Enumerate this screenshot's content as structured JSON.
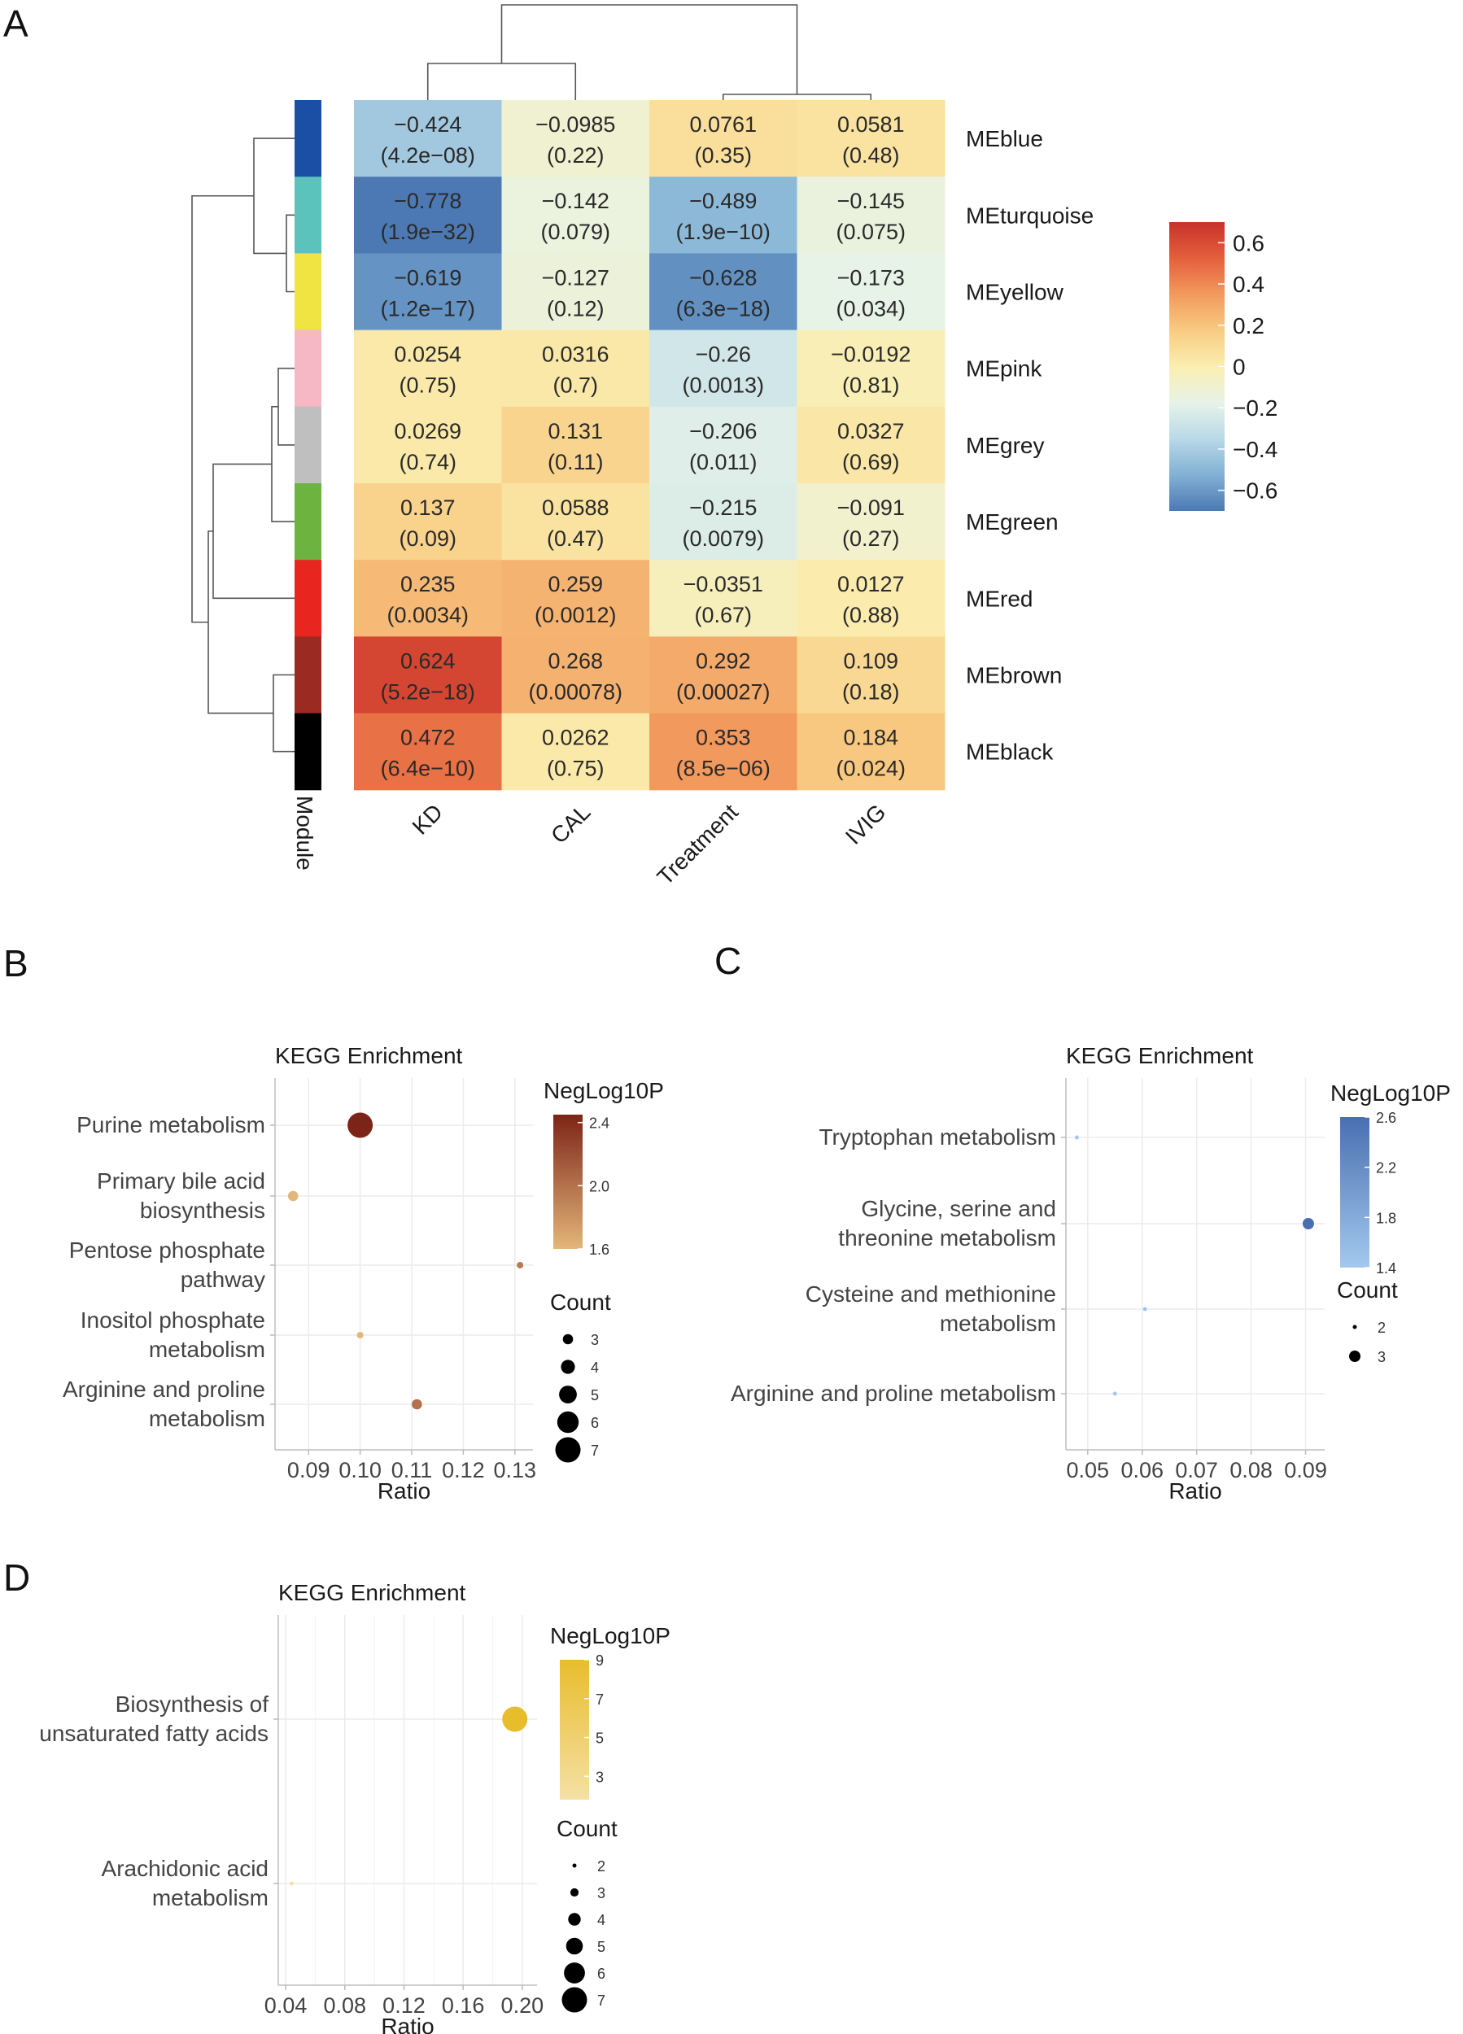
{
  "panel_labels": {
    "a": "A",
    "b": "B",
    "c": "C",
    "d": "D"
  },
  "chart_data": [
    {
      "type": "heatmap",
      "panel": "A",
      "columns": [
        "KD",
        "CAL",
        "Treatment",
        "IVIG"
      ],
      "rows": [
        "MEblue",
        "MEturquoise",
        "MEyellow",
        "MEpink",
        "MEgrey",
        "MEgreen",
        "MEred",
        "MEbrown",
        "MEblack"
      ],
      "module_colors": [
        "#1b4ea5",
        "#5cc2bc",
        "#f0e442",
        "#f7b8c6",
        "#bfbfbf",
        "#6cb33f",
        "#e8261f",
        "#9b2a23",
        "#000000"
      ],
      "values": [
        [
          -0.424,
          -0.0985,
          0.0761,
          0.0581
        ],
        [
          -0.778,
          -0.142,
          -0.489,
          -0.145
        ],
        [
          -0.619,
          -0.127,
          -0.628,
          -0.173
        ],
        [
          0.0254,
          0.0316,
          -0.26,
          -0.0192
        ],
        [
          0.0269,
          0.131,
          -0.206,
          0.0327
        ],
        [
          0.137,
          0.0588,
          -0.215,
          -0.091
        ],
        [
          0.235,
          0.259,
          -0.0351,
          0.0127
        ],
        [
          0.624,
          0.268,
          0.292,
          0.109
        ],
        [
          0.472,
          0.0262,
          0.353,
          0.184
        ]
      ],
      "cell_text": [
        [
          "−0.424",
          "−0.0985",
          "0.0761",
          "0.0581"
        ],
        [
          "−0.778",
          "−0.142",
          "−0.489",
          "−0.145"
        ],
        [
          "−0.619",
          "−0.127",
          "−0.628",
          "−0.173"
        ],
        [
          "0.0254",
          "0.0316",
          "−0.26",
          "−0.0192"
        ],
        [
          "0.0269",
          "0.131",
          "−0.206",
          "0.0327"
        ],
        [
          "0.137",
          "0.0588",
          "−0.215",
          "−0.091"
        ],
        [
          "0.235",
          "0.259",
          "−0.0351",
          "0.0127"
        ],
        [
          "0.624",
          "0.268",
          "0.292",
          "0.109"
        ],
        [
          "0.472",
          "0.0262",
          "0.353",
          "0.184"
        ]
      ],
      "pvalues": [
        [
          "(4.2e−08)",
          "(0.22)",
          "(0.35)",
          "(0.48)"
        ],
        [
          "(1.9e−32)",
          "(0.079)",
          "(1.9e−10)",
          "(0.075)"
        ],
        [
          "(1.2e−17)",
          "(0.12)",
          "(6.3e−18)",
          "(0.034)"
        ],
        [
          "(0.75)",
          "(0.7)",
          "(0.0013)",
          "(0.81)"
        ],
        [
          "(0.74)",
          "(0.11)",
          "(0.011)",
          "(0.69)"
        ],
        [
          "(0.09)",
          "(0.47)",
          "(0.0079)",
          "(0.27)"
        ],
        [
          "(0.0034)",
          "(0.0012)",
          "(0.67)",
          "(0.88)"
        ],
        [
          "(5.2e−18)",
          "(0.00078)",
          "(0.00027)",
          "(0.18)"
        ],
        [
          "(6.4e−10)",
          "(0.75)",
          "(8.5e−06)",
          "(0.024)"
        ]
      ],
      "module_axis_label": "Module",
      "colorbar": {
        "range": [
          -0.7,
          0.7
        ],
        "ticks": [
          0.6,
          0.4,
          0.2,
          0,
          -0.2,
          -0.4,
          -0.6
        ],
        "tick_labels": [
          "0.6",
          "0.4",
          "0.2",
          "0",
          "−0.2",
          "−0.4",
          "−0.6"
        ],
        "colors": [
          "#c7322a",
          "#e45f3c",
          "#f29a5e",
          "#f8cb82",
          "#fbeeb0",
          "#e7f3e8",
          "#b9d9e7",
          "#82b1d5",
          "#4c79b3"
        ]
      }
    },
    {
      "type": "scatter",
      "panel": "B",
      "title": "KEGG Enrichment",
      "xlabel": "Ratio",
      "xlim": [
        0.0835,
        0.1335
      ],
      "xticks": [
        0.09,
        0.1,
        0.11,
        0.12,
        0.13
      ],
      "xtick_labels": [
        "0.09",
        "0.10",
        "0.11",
        "0.12",
        "0.13"
      ],
      "categories": [
        "Purine metabolism",
        "Primary bile acid biosynthesis",
        "Pentose phosphate pathway",
        "Inositol phosphate metabolism",
        "Arginine and proline metabolism"
      ],
      "category_lines": [
        [
          "Purine metabolism"
        ],
        [
          "Primary bile acid",
          "biosynthesis"
        ],
        [
          "Pentose phosphate",
          "pathway"
        ],
        [
          "Inositol phosphate",
          "metabolism"
        ],
        [
          "Arginine and proline",
          "metabolism"
        ]
      ],
      "x": [
        0.1,
        0.087,
        0.131,
        0.1,
        0.111
      ],
      "count": [
        7,
        3,
        2,
        2,
        3
      ],
      "neglog10p": [
        2.45,
        1.6,
        1.95,
        1.6,
        2.0
      ],
      "color_legend": {
        "title": "NegLog10P",
        "range": [
          1.6,
          2.45
        ],
        "ticks": [
          2.4,
          2.0,
          1.6
        ],
        "tick_labels": [
          "2.4",
          "2.0",
          "1.6"
        ],
        "low": "#e3b67a",
        "high": "#7d2418"
      },
      "size_legend": {
        "title": "Count",
        "values": [
          3,
          4,
          5,
          6,
          7
        ],
        "labels": [
          "3",
          "4",
          "5",
          "6",
          "7"
        ]
      }
    },
    {
      "type": "scatter",
      "panel": "C",
      "title": "KEGG Enrichment",
      "xlabel": "Ratio",
      "xlim": [
        0.046,
        0.0935
      ],
      "xticks": [
        0.05,
        0.06,
        0.07,
        0.08,
        0.09
      ],
      "xtick_labels": [
        "0.05",
        "0.06",
        "0.07",
        "0.08",
        "0.09"
      ],
      "categories": [
        "Tryptophan metabolism",
        "Glycine, serine and threonine metabolism",
        "Cysteine and methionine metabolism",
        "Arginine and proline metabolism"
      ],
      "category_lines": [
        [
          "Tryptophan metabolism"
        ],
        [
          "Glycine, serine and",
          "threonine metabolism"
        ],
        [
          "Cysteine and methionine",
          "metabolism"
        ],
        [
          "Arginine and proline metabolism"
        ]
      ],
      "x": [
        0.048,
        0.0905,
        0.0605,
        0.055
      ],
      "count": [
        2,
        3,
        2,
        2
      ],
      "neglog10p": [
        1.4,
        2.6,
        1.45,
        1.4
      ],
      "color_legend": {
        "title": "NegLog10P",
        "range": [
          1.4,
          2.6
        ],
        "ticks": [
          2.6,
          2.2,
          1.8,
          1.4
        ],
        "tick_labels": [
          "2.6",
          "2.2",
          "1.8",
          "1.4"
        ],
        "low": "#a3c9ef",
        "high": "#4a6fb0"
      },
      "size_legend": {
        "title": "Count",
        "values": [
          2,
          3
        ],
        "labels": [
          "2",
          "3"
        ]
      }
    },
    {
      "type": "scatter",
      "panel": "D",
      "title": "KEGG Enrichment",
      "xlabel": "Ratio",
      "xlim": [
        0.035,
        0.21
      ],
      "xticks": [
        0.04,
        0.08,
        0.12,
        0.16,
        0.2
      ],
      "xtick_labels": [
        "0.04",
        "0.08",
        "0.12",
        "0.16",
        "0.20"
      ],
      "categories": [
        "Biosynthesis of unsaturated fatty acids",
        "Arachidonic acid metabolism"
      ],
      "category_lines": [
        [
          "Biosynthesis of",
          "unsaturated fatty acids"
        ],
        [
          "Arachidonic acid",
          "metabolism"
        ]
      ],
      "x": [
        0.195,
        0.044
      ],
      "count": [
        7,
        2
      ],
      "neglog10p": [
        9.0,
        1.8
      ],
      "color_legend": {
        "title": "NegLog10P",
        "range": [
          1.8,
          9.0
        ],
        "ticks": [
          9,
          7,
          5,
          3
        ],
        "tick_labels": [
          "9",
          "7",
          "5",
          "3"
        ],
        "low": "#f5e0a6",
        "high": "#e8bd2c"
      },
      "size_legend": {
        "title": "Count",
        "values": [
          2,
          3,
          4,
          5,
          6,
          7
        ],
        "labels": [
          "2",
          "3",
          "4",
          "5",
          "6",
          "7"
        ]
      }
    }
  ]
}
